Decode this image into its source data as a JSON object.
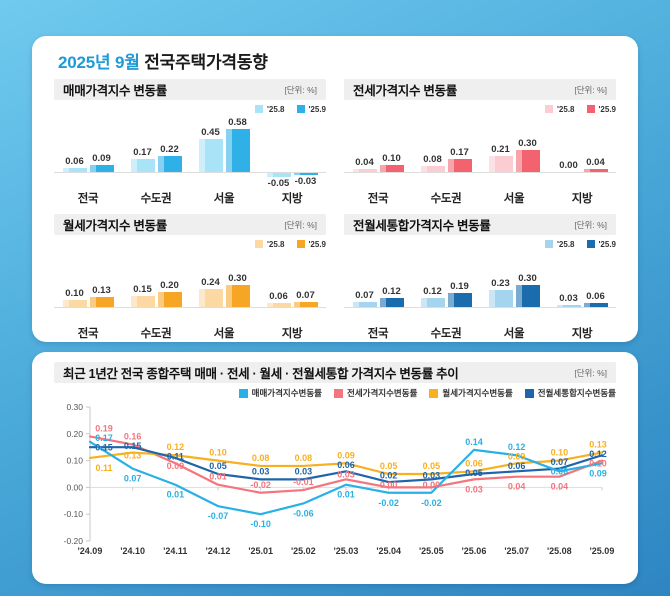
{
  "page": {
    "title_highlight": "2025년 9월",
    "title_rest": " 전국주택가격동향"
  },
  "chart_data": [
    {
      "type": "bar",
      "title": "매매가격지수 변동률",
      "unit": "[단위: %]",
      "categories": [
        "전국",
        "수도권",
        "서울",
        "지방"
      ],
      "series": [
        {
          "name": "'25.8",
          "color": "#a9e3f8",
          "values": [
            0.06,
            0.17,
            0.45,
            -0.05
          ]
        },
        {
          "name": "'25.9",
          "color": "#2fb0e7",
          "values": [
            0.09,
            0.22,
            0.58,
            -0.03
          ]
        }
      ]
    },
    {
      "type": "bar",
      "title": "전세가격지수 변동률",
      "unit": "[단위: %]",
      "categories": [
        "전국",
        "수도권",
        "서울",
        "지방"
      ],
      "series": [
        {
          "name": "'25.8",
          "color": "#fbccd1",
          "values": [
            0.04,
            0.08,
            0.21,
            0.0
          ]
        },
        {
          "name": "'25.9",
          "color": "#f2636f",
          "values": [
            0.1,
            0.17,
            0.3,
            0.04
          ]
        }
      ]
    },
    {
      "type": "bar",
      "title": "월세가격지수 변동률",
      "unit": "[단위: %]",
      "categories": [
        "전국",
        "수도권",
        "서울",
        "지방"
      ],
      "series": [
        {
          "name": "'25.8",
          "color": "#fcd8a2",
          "values": [
            0.1,
            0.15,
            0.24,
            0.06
          ]
        },
        {
          "name": "'25.9",
          "color": "#f6a525",
          "values": [
            0.13,
            0.2,
            0.3,
            0.07
          ]
        }
      ]
    },
    {
      "type": "bar",
      "title": "전월세통합가격지수 변동률",
      "unit": "[단위: %]",
      "categories": [
        "전국",
        "수도권",
        "서울",
        "지방"
      ],
      "series": [
        {
          "name": "'25.8",
          "color": "#a5d5ee",
          "values": [
            0.07,
            0.12,
            0.23,
            0.03
          ]
        },
        {
          "name": "'25.9",
          "color": "#1b6cac",
          "values": [
            0.12,
            0.19,
            0.3,
            0.06
          ]
        }
      ]
    },
    {
      "type": "line",
      "title": "최근 1년간 전국 종합주택 매매 · 전세 · 월세 · 전월세통합 가격지수 변동률 추이",
      "unit": "[단위: %]",
      "x": [
        "'24.09",
        "'24.10",
        "'24.11",
        "'24.12",
        "'25.01",
        "'25.02",
        "'25.03",
        "'25.04",
        "'25.05",
        "'25.06",
        "'25.07",
        "'25.08",
        "'25.09"
      ],
      "ylim": [
        -0.2,
        0.3
      ],
      "yticks": [
        0.3,
        0.2,
        0.1,
        0.0,
        -0.1,
        -0.2
      ],
      "legend_position": "top-right",
      "series": [
        {
          "name": "매매가격지수변동률",
          "color": "#29b0e6",
          "values": [
            0.17,
            0.07,
            0.01,
            -0.07,
            -0.1,
            -0.06,
            0.01,
            -0.02,
            -0.02,
            0.14,
            0.12,
            0.06,
            0.09
          ]
        },
        {
          "name": "전세가격지수변동률",
          "color": "#f4757d",
          "values": [
            0.19,
            0.16,
            0.09,
            0.01,
            -0.02,
            -0.01,
            0.03,
            0.0,
            0.0,
            0.03,
            0.04,
            0.04,
            0.1
          ]
        },
        {
          "name": "월세가격지수변동률",
          "color": "#f8b020",
          "values": [
            0.11,
            0.13,
            0.12,
            0.1,
            0.08,
            0.08,
            0.09,
            0.05,
            0.05,
            0.06,
            0.09,
            0.1,
            0.13
          ]
        },
        {
          "name": "전월세통합지수변동률",
          "color": "#1e65a9",
          "values": [
            0.15,
            0.15,
            0.11,
            0.05,
            0.03,
            0.03,
            0.06,
            0.02,
            0.03,
            0.05,
            0.06,
            0.07,
            0.12
          ]
        }
      ]
    }
  ]
}
